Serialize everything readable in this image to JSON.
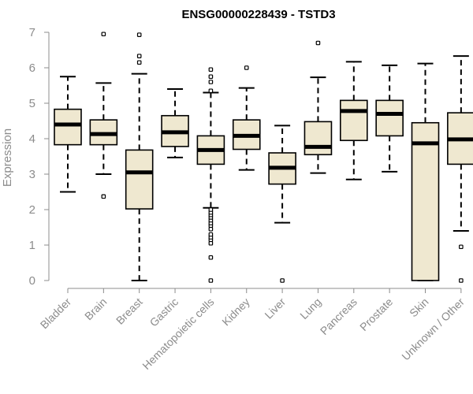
{
  "chart_data": {
    "type": "box",
    "title": "ENSG00000228439 - TSTD3",
    "xlabel": "",
    "ylabel": "Expression",
    "ylim": [
      0,
      7
    ],
    "yticks": [
      0,
      1,
      2,
      3,
      4,
      5,
      6,
      7
    ],
    "box_fill": "#efe8d0",
    "categories": [
      "Bladder",
      "Brain",
      "Breast",
      "Gastric",
      "Hematopoietic cells",
      "Kidney",
      "Liver",
      "Lung",
      "Pancreas",
      "Prostate",
      "Skin",
      "Unknown / Other"
    ],
    "series": [
      {
        "name": "Bladder",
        "whisker_low": 2.5,
        "q1": 3.83,
        "median": 4.4,
        "q3": 4.83,
        "whisker_high": 5.75,
        "outliers": []
      },
      {
        "name": "Brain",
        "whisker_low": 3.0,
        "q1": 3.83,
        "median": 4.13,
        "q3": 4.53,
        "whisker_high": 5.57,
        "outliers": [
          2.37,
          6.95
        ]
      },
      {
        "name": "Breast",
        "whisker_low": 0.0,
        "q1": 2.02,
        "median": 3.05,
        "q3": 3.68,
        "whisker_high": 5.83,
        "outliers": [
          6.15,
          6.33,
          6.93
        ]
      },
      {
        "name": "Gastric",
        "whisker_low": 3.47,
        "q1": 3.78,
        "median": 4.18,
        "q3": 4.65,
        "whisker_high": 5.4,
        "outliers": []
      },
      {
        "name": "Hematopoietic cells",
        "whisker_low": 2.05,
        "q1": 3.28,
        "median": 3.68,
        "q3": 4.08,
        "whisker_high": 5.3,
        "outliers": [
          0.0,
          0.65,
          1.05,
          1.15,
          1.22,
          1.3,
          1.45,
          1.55,
          1.62,
          1.7,
          1.78,
          1.85,
          1.92,
          2.0,
          5.35,
          5.6,
          5.75,
          5.95
        ]
      },
      {
        "name": "Kidney",
        "whisker_low": 3.12,
        "q1": 3.7,
        "median": 4.08,
        "q3": 4.53,
        "whisker_high": 5.43,
        "outliers": [
          6.0
        ]
      },
      {
        "name": "Liver",
        "whisker_low": 1.63,
        "q1": 2.72,
        "median": 3.18,
        "q3": 3.6,
        "whisker_high": 4.37,
        "outliers": [
          0.0
        ]
      },
      {
        "name": "Lung",
        "whisker_low": 3.03,
        "q1": 3.55,
        "median": 3.77,
        "q3": 4.48,
        "whisker_high": 5.73,
        "outliers": [
          6.7
        ]
      },
      {
        "name": "Pancreas",
        "whisker_low": 2.85,
        "q1": 3.95,
        "median": 4.78,
        "q3": 5.08,
        "whisker_high": 6.17,
        "outliers": []
      },
      {
        "name": "Prostate",
        "whisker_low": 3.07,
        "q1": 4.08,
        "median": 4.7,
        "q3": 5.08,
        "whisker_high": 6.07,
        "outliers": []
      },
      {
        "name": "Skin",
        "whisker_low": 0.0,
        "q1": 0.0,
        "median": 3.87,
        "q3": 4.45,
        "whisker_high": 6.12,
        "outliers": []
      },
      {
        "name": "Unknown / Other",
        "whisker_low": 1.4,
        "q1": 3.28,
        "median": 3.98,
        "q3": 4.73,
        "whisker_high": 6.33,
        "outliers": [
          0.0,
          0.95
        ]
      }
    ]
  }
}
